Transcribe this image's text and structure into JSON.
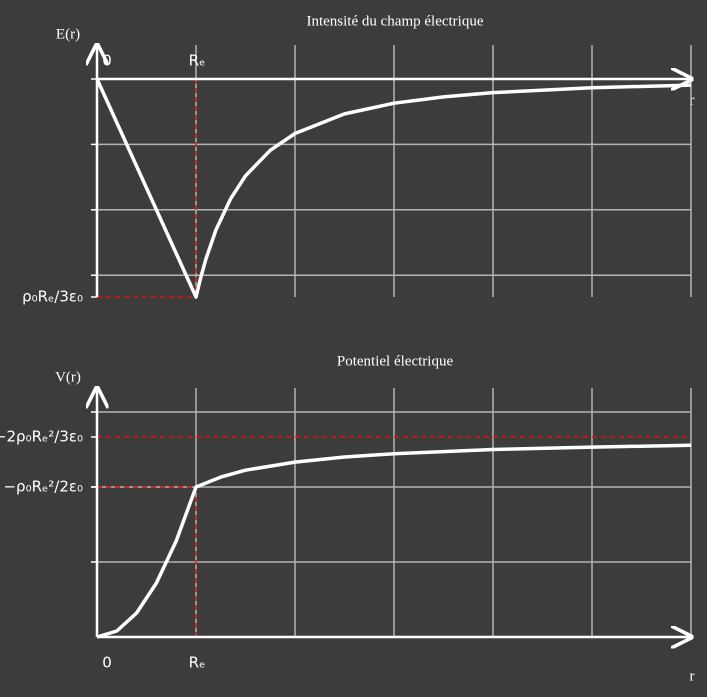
{
  "chart_data": [
    {
      "type": "line",
      "title": "Intensité du champ électrique",
      "ylabel": "E(r)",
      "xlabel": "r",
      "x": [
        0,
        1,
        1.05,
        1.1,
        1.2,
        1.35,
        1.5,
        1.75,
        2,
        2.5,
        3,
        3.5,
        4,
        5,
        6
      ],
      "series": [
        {
          "color": "#ffffff",
          "values": [
            0,
            -1,
            -0.907,
            -0.826,
            -0.694,
            -0.549,
            -0.444,
            -0.327,
            -0.25,
            -0.16,
            -0.111,
            -0.082,
            -0.0625,
            -0.04,
            -0.028
          ]
        }
      ],
      "xlim": [
        0,
        6
      ],
      "ylim": [
        -1,
        0
      ],
      "xticks": [
        0,
        {
          "value": 1,
          "label": "Rₑ"
        }
      ],
      "yticks": [
        {
          "value": -1,
          "label": "ρ₀Rₑ/3ε₀"
        }
      ],
      "xgrid": [
        1,
        2,
        3,
        4,
        5,
        6
      ],
      "ygrid": [
        0,
        -0.3,
        -0.6,
        -0.9
      ],
      "guides": [
        {
          "x": [
            1,
            1
          ],
          "y": [
            0,
            -1
          ],
          "color": "#e01010"
        },
        {
          "x": [
            0,
            1
          ],
          "y": [
            -1,
            -1
          ],
          "color": "#e01010"
        }
      ]
    },
    {
      "type": "line",
      "title": "Potentiel électrique",
      "ylabel": "V(r)",
      "xlabel": "r",
      "x": [
        0,
        0.2,
        0.4,
        0.6,
        0.8,
        1,
        1.25,
        1.5,
        2,
        2.5,
        3,
        4,
        5,
        6
      ],
      "series": [
        {
          "color": "#ffffff",
          "values": [
            0,
            0.02,
            0.08,
            0.18,
            0.32,
            0.5,
            0.533,
            0.556,
            0.583,
            0.6,
            0.611,
            0.625,
            0.633,
            0.639
          ]
        }
      ],
      "xlim": [
        0,
        6
      ],
      "ylim": [
        0,
        0.75
      ],
      "xticks": [
        0,
        {
          "value": 1,
          "label": "Rₑ"
        }
      ],
      "yticks": [
        {
          "value": 0.6667,
          "label": "−2ρ₀Rₑ²/3ε₀"
        },
        {
          "value": 0.5,
          "label": "−ρ₀Rₑ²/2ε₀"
        }
      ],
      "xgrid": [
        1,
        2,
        3,
        4,
        5,
        6
      ],
      "ygrid": [
        0.25,
        0.5,
        0.75
      ],
      "guides": [
        {
          "x": [
            0,
            6
          ],
          "y": [
            0.6667,
            0.6667
          ],
          "color": "#e01010"
        },
        {
          "x": [
            0,
            1
          ],
          "y": [
            0.5,
            0.5
          ],
          "color": "#e01010"
        },
        {
          "x": [
            1,
            1
          ],
          "y": [
            0,
            0.5
          ],
          "color": "#e01010"
        }
      ]
    }
  ]
}
